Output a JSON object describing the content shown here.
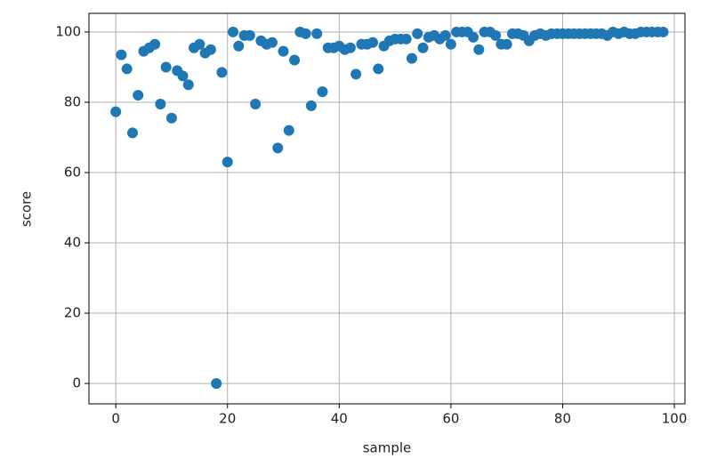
{
  "chart_data": {
    "type": "scatter",
    "x_label": "sample",
    "y_label": "score",
    "x": [
      0,
      1,
      2,
      3,
      4,
      5,
      6,
      7,
      8,
      9,
      10,
      11,
      12,
      13,
      14,
      15,
      16,
      17,
      18,
      19,
      20,
      21,
      22,
      23,
      24,
      25,
      26,
      27,
      28,
      29,
      30,
      31,
      32,
      33,
      34,
      35,
      36,
      37,
      38,
      39,
      40,
      41,
      42,
      43,
      44,
      45,
      46,
      47,
      48,
      49,
      50,
      51,
      52,
      53,
      54,
      55,
      56,
      57,
      58,
      59,
      60,
      61,
      62,
      63,
      64,
      65,
      66,
      67,
      68,
      69,
      70,
      71,
      72,
      73,
      74,
      75,
      76,
      77,
      78,
      79,
      80,
      81,
      82,
      83,
      84,
      85,
      86,
      87,
      88,
      89,
      90,
      91,
      92,
      93,
      94,
      95,
      96,
      97,
      98
    ],
    "values": [
      77.3,
      93.5,
      89.5,
      71.3,
      82,
      94.5,
      95.5,
      96.5,
      79.5,
      90,
      75.5,
      89,
      87.5,
      85,
      95.5,
      96.5,
      94,
      95,
      0,
      88.5,
      63,
      100,
      96,
      99,
      99,
      79.5,
      97.5,
      96.5,
      97,
      67,
      94.5,
      72,
      92,
      100,
      99.5,
      79,
      99.5,
      83,
      95.5,
      95.5,
      96,
      95,
      95.5,
      88,
      96.5,
      96.5,
      97,
      89.5,
      96,
      97.5,
      98,
      98,
      98,
      92.5,
      99.5,
      95.5,
      98.5,
      99,
      98,
      99,
      96.5,
      100,
      100,
      100,
      98.5,
      95,
      100,
      100,
      99,
      96.5,
      96.5,
      99.5,
      99.5,
      99,
      97.5,
      99,
      99.5,
      99,
      99.5,
      99.5,
      99.5,
      99.5,
      99.5,
      99.5,
      99.5,
      99.5,
      99.5,
      99.5,
      99,
      100,
      99.5,
      100,
      99.5,
      99.5,
      100,
      100,
      100,
      100,
      100
    ],
    "color": "#1f77b4",
    "xlim": [
      -4.8,
      101.9
    ],
    "xticks": [
      0,
      20,
      40,
      60,
      80,
      100
    ],
    "ylim": [
      -5.8,
      105.3
    ],
    "yticks": [
      0,
      20,
      40,
      60,
      80,
      100
    ],
    "grid": true
  }
}
